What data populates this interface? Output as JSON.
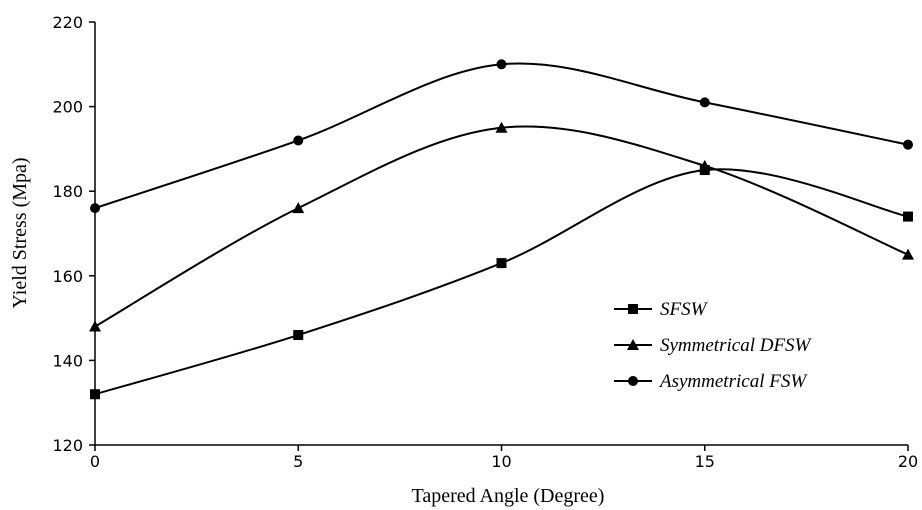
{
  "chart_data": {
    "type": "line",
    "smooth": true,
    "xlabel": "Tapered Angle (Degree)",
    "ylabel": "Yield Stress (Mpa)",
    "xlim": [
      0,
      20
    ],
    "ylim": [
      120,
      220
    ],
    "xticks": [
      "0",
      "5",
      "10",
      "15",
      "20"
    ],
    "yticks": [
      "120",
      "140",
      "160",
      "180",
      "200",
      "220"
    ],
    "x": [
      0,
      5,
      10,
      15,
      20
    ],
    "grid": false,
    "legend_position": "center-right",
    "series": [
      {
        "name": "SFSW",
        "marker": "square",
        "values": [
          132,
          146,
          163,
          185,
          174
        ]
      },
      {
        "name": "Symmetrical DFSW",
        "marker": "triangle",
        "values": [
          148,
          176,
          195,
          186,
          165
        ]
      },
      {
        "name": "Asymmetrical FSW",
        "marker": "circle",
        "values": [
          176,
          192,
          210,
          201,
          191
        ]
      }
    ],
    "line_color": "#000000"
  }
}
